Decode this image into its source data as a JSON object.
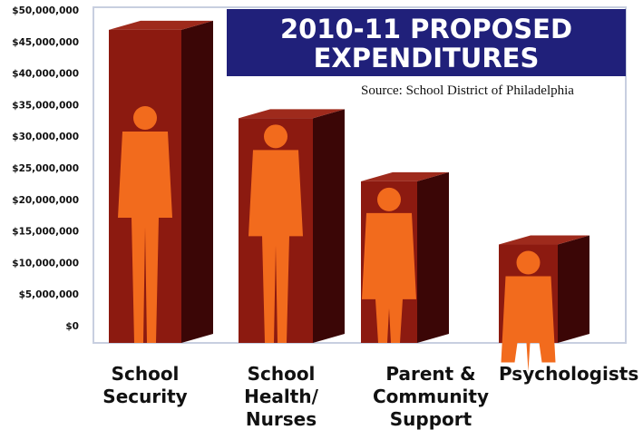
{
  "chart_data": {
    "type": "bar3d",
    "title": "2010-11 PROPOSED EXPENDITURES",
    "source": "Source: School District of Philadelphia",
    "categories": [
      "School Security",
      "School Health/ Nurses",
      "Parent & Community Support",
      "Psychologists"
    ],
    "values": [
      47000000,
      33000000,
      23000000,
      13000000
    ],
    "color": "#8c1a10",
    "ylim": [
      0,
      50000000
    ],
    "yticks": [
      {
        "value": 0,
        "label": "$0"
      },
      {
        "value": 5000000,
        "label": "$5,000,000"
      },
      {
        "value": 10000000,
        "label": "$10,000,000"
      },
      {
        "value": 15000000,
        "label": "$15,000,000"
      },
      {
        "value": 20000000,
        "label": "$20,000,000"
      },
      {
        "value": 25000000,
        "label": "$25,000,000"
      },
      {
        "value": 30000000,
        "label": "$30,000,000"
      },
      {
        "value": 35000000,
        "label": "$35,000,000"
      },
      {
        "value": 40000000,
        "label": "$40,000,000"
      },
      {
        "value": 45000000,
        "label": "$45,000,000"
      },
      {
        "value": 50000000,
        "label": "$50,000,000"
      }
    ]
  }
}
